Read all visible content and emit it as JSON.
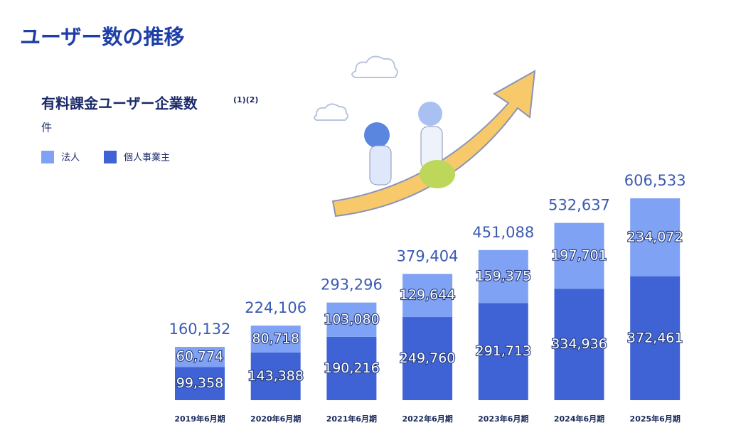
{
  "chart_data": {
    "type": "stacked-bar",
    "page_title": "ユーザー数の推移",
    "title": "有料課金ユーザー企業数",
    "title_note": "(1)(2)",
    "unit": "件",
    "categories": [
      "2019年6月期",
      "2020年6月期",
      "2021年6月期",
      "2022年6月期",
      "2023年6月期",
      "2024年6月期",
      "2025年6月期"
    ],
    "series": [
      {
        "name": "個人事業主",
        "color": "#3f63d5",
        "values": [
          99358,
          143388,
          190216,
          249760,
          291713,
          334936,
          372461
        ],
        "value_labels": [
          "99,358",
          "143,388",
          "190,216",
          "249,760",
          "291,713",
          "334,936",
          "372,461"
        ]
      },
      {
        "name": "法人",
        "color": "#7fa2f4",
        "values": [
          60774,
          80718,
          103080,
          129644,
          159375,
          197701,
          234072
        ],
        "value_labels": [
          "60,774",
          "80,718",
          "103,080",
          "129,644",
          "159,375",
          "197,701",
          "234,072"
        ]
      }
    ],
    "totals": [
      160132,
      224106,
      293296,
      379404,
      451088,
      532637,
      606533
    ],
    "total_labels": [
      "160,132",
      "224,106",
      "293,296",
      "379,404",
      "451,088",
      "532,637",
      "606,533"
    ],
    "legend_order": [
      1,
      0
    ]
  }
}
